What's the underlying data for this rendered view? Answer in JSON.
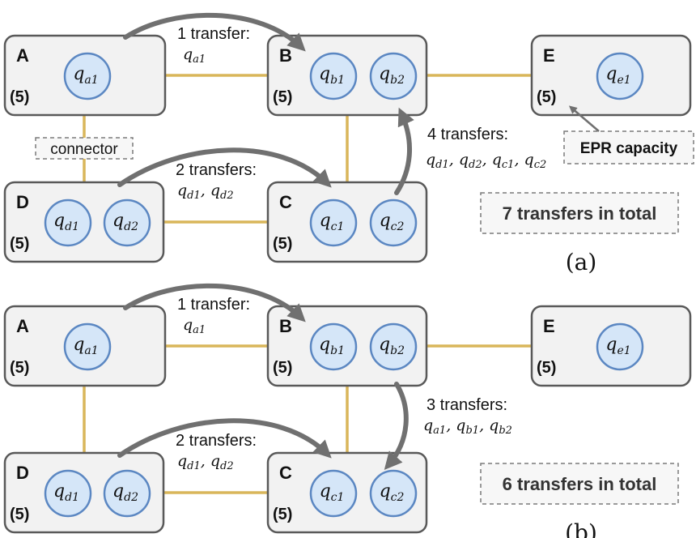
{
  "panels": [
    {
      "id": "a",
      "label": "(a)",
      "total": "7 transfers in total",
      "nodes": [
        {
          "name": "A",
          "capacity": "(5)",
          "qubits": [
            {
              "base": "q",
              "sub": "a1"
            }
          ]
        },
        {
          "name": "B",
          "capacity": "(5)",
          "qubits": [
            {
              "base": "q",
              "sub": "b1"
            },
            {
              "base": "q",
              "sub": "b2"
            }
          ]
        },
        {
          "name": "E",
          "capacity": "(5)",
          "qubits": [
            {
              "base": "q",
              "sub": "e1"
            }
          ]
        },
        {
          "name": "D",
          "capacity": "(5)",
          "qubits": [
            {
              "base": "q",
              "sub": "d1"
            },
            {
              "base": "q",
              "sub": "d2"
            }
          ]
        },
        {
          "name": "C",
          "capacity": "(5)",
          "qubits": [
            {
              "base": "q",
              "sub": "c1"
            },
            {
              "base": "q",
              "sub": "c2"
            }
          ]
        }
      ],
      "transfers": [
        {
          "count": "1 transfer:",
          "qubits": [
            {
              "base": "q",
              "sub": "a1"
            }
          ]
        },
        {
          "count": "2 transfers:",
          "qubits": [
            {
              "base": "q",
              "sub": "d1"
            },
            {
              "base": "q",
              "sub": "d2"
            }
          ]
        },
        {
          "count": "4 transfers:",
          "qubits": [
            {
              "base": "q",
              "sub": "d1"
            },
            {
              "base": "q",
              "sub": "d2"
            },
            {
              "base": "q",
              "sub": "c1"
            },
            {
              "base": "q",
              "sub": "c2"
            }
          ]
        }
      ],
      "annotations": {
        "connector": "connector",
        "epr": "EPR capacity"
      }
    },
    {
      "id": "b",
      "label": "(b)",
      "total": "6 transfers in total",
      "nodes": [
        {
          "name": "A",
          "capacity": "(5)",
          "qubits": [
            {
              "base": "q",
              "sub": "a1"
            }
          ]
        },
        {
          "name": "B",
          "capacity": "(5)",
          "qubits": [
            {
              "base": "q",
              "sub": "b1"
            },
            {
              "base": "q",
              "sub": "b2"
            }
          ]
        },
        {
          "name": "E",
          "capacity": "(5)",
          "qubits": [
            {
              "base": "q",
              "sub": "e1"
            }
          ]
        },
        {
          "name": "D",
          "capacity": "(5)",
          "qubits": [
            {
              "base": "q",
              "sub": "d1"
            },
            {
              "base": "q",
              "sub": "d2"
            }
          ]
        },
        {
          "name": "C",
          "capacity": "(5)",
          "qubits": [
            {
              "base": "q",
              "sub": "c1"
            },
            {
              "base": "q",
              "sub": "c2"
            }
          ]
        }
      ],
      "transfers": [
        {
          "count": "1 transfer:",
          "qubits": [
            {
              "base": "q",
              "sub": "a1"
            }
          ]
        },
        {
          "count": "2 transfers:",
          "qubits": [
            {
              "base": "q",
              "sub": "d1"
            },
            {
              "base": "q",
              "sub": "d2"
            }
          ]
        },
        {
          "count": "3 transfers:",
          "qubits": [
            {
              "base": "q",
              "sub": "a1"
            },
            {
              "base": "q",
              "sub": "b1"
            },
            {
              "base": "q",
              "sub": "b2"
            }
          ]
        }
      ]
    }
  ],
  "colors": {
    "node_fill": "#f2f2f2",
    "node_stroke": "#595959",
    "qubit_fill": "#d5e6f8",
    "qubit_stroke": "#5b87c2",
    "connector": "#d9b65a",
    "arrow": "#707070"
  }
}
